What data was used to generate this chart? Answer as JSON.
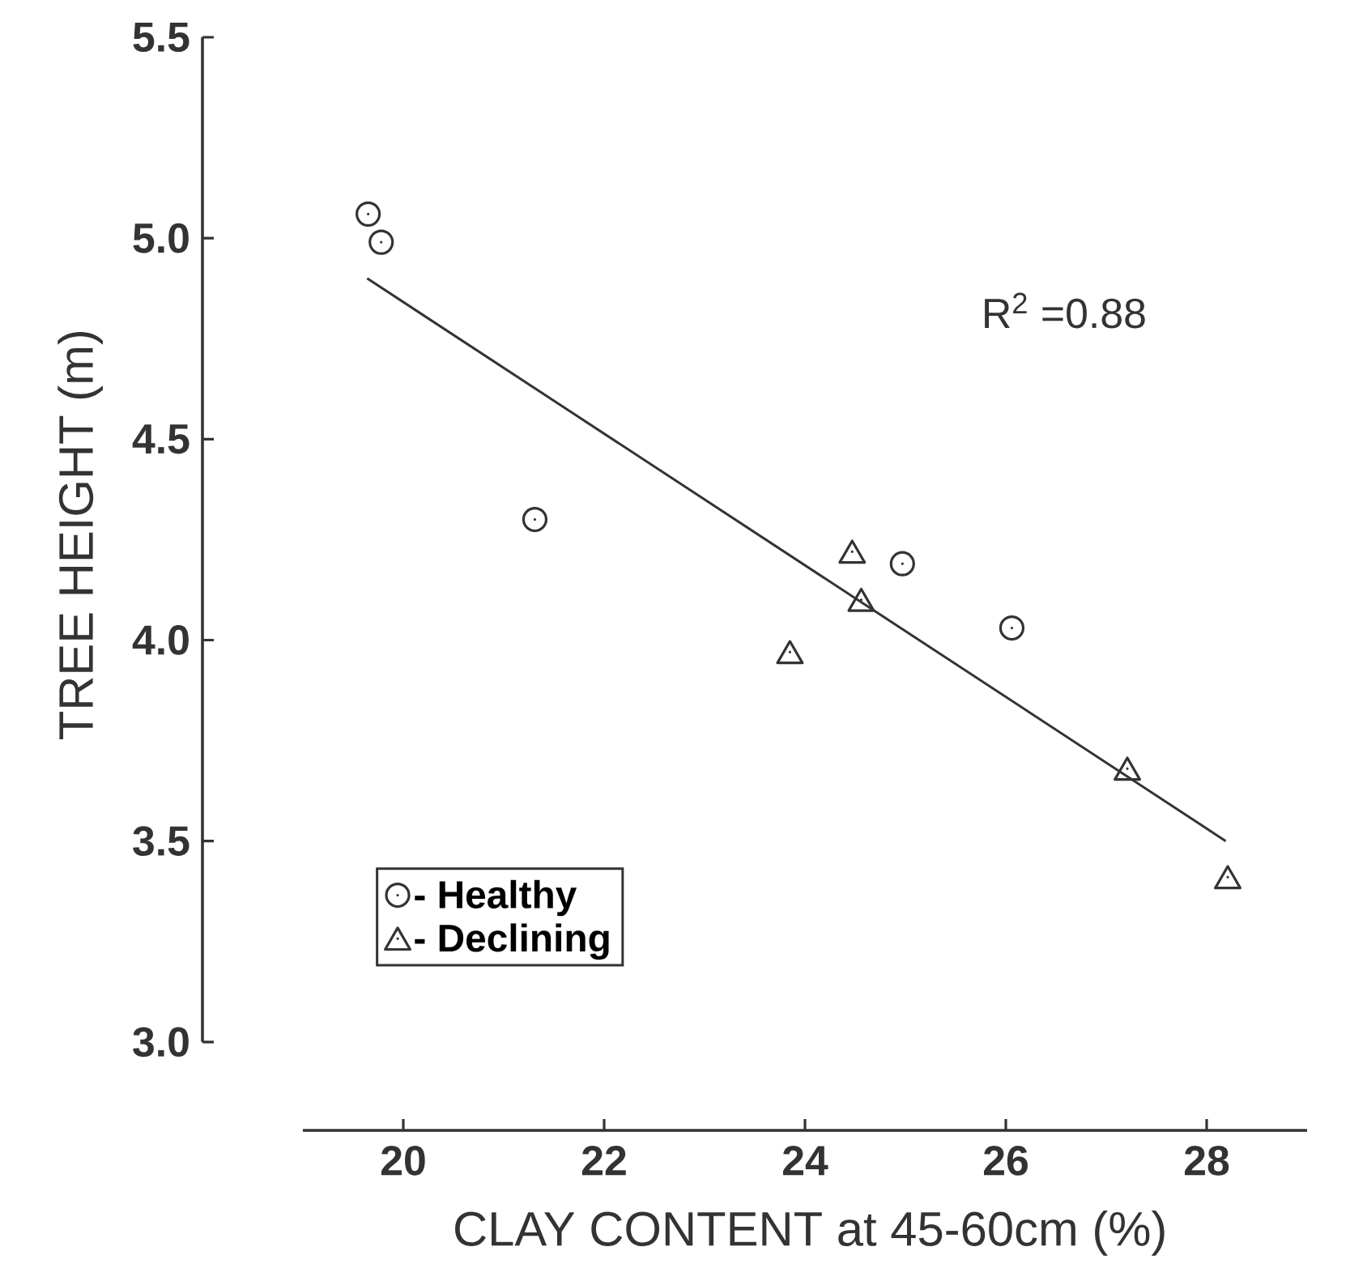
{
  "chart_data": {
    "type": "scatter",
    "xlabel": "CLAY CONTENT at 45-60cm (%)",
    "ylabel": "TREE HEIGHT  (m)",
    "xlim": [
      19,
      29
    ],
    "xticks": [
      20,
      22,
      24,
      26,
      28
    ],
    "ylim": [
      3.0,
      5.5
    ],
    "yticks": [
      {
        "value": 3.0,
        "label": "3.0"
      },
      {
        "value": 3.5,
        "label": "3.5"
      },
      {
        "value": 4.0,
        "label": "4.0"
      },
      {
        "value": 4.5,
        "label": "4.5"
      },
      {
        "value": 5.0,
        "label": "5.0"
      },
      {
        "value": 5.5,
        "label": "5.5"
      }
    ],
    "legend": "bottom left",
    "grid": false,
    "annotations": [
      "R$^{2}$ =0.88"
    ],
    "series": [
      {
        "name": "- Healthy",
        "color": "#333333",
        "marker": "circle",
        "x": [
          19.65,
          19.78,
          21.31,
          24.97,
          26.06
        ],
        "values": [
          5.06,
          4.99,
          4.3,
          4.19,
          4.03
        ]
      },
      {
        "name": "- Declining",
        "color": "#333333",
        "marker": "triangle",
        "x": [
          24.47,
          24.56,
          23.85,
          27.21,
          28.21
        ],
        "values": [
          4.22,
          4.1,
          3.97,
          3.68,
          3.41
        ]
      },
      {
        "type": "line",
        "color": "#333333",
        "marker": "none",
        "line_style": "solid",
        "x": [
          19.64,
          28.19
        ],
        "values": [
          4.9,
          3.5
        ]
      }
    ]
  }
}
